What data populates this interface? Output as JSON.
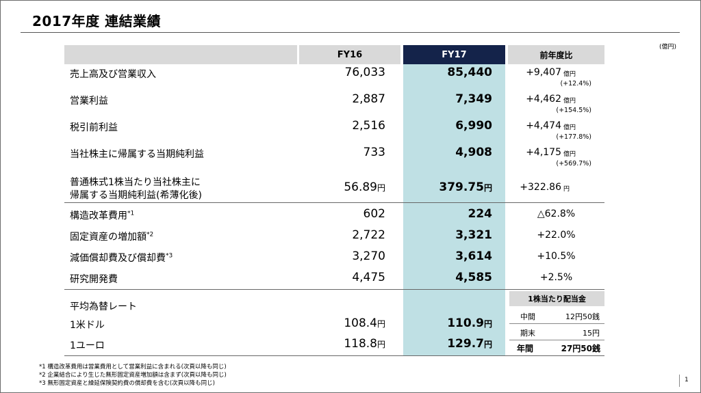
{
  "title": "2017年度 連結業績",
  "unit": "(億円)",
  "header": {
    "fy16": "FY16",
    "fy17": "FY17",
    "diff": "前年度比"
  },
  "rows": [
    {
      "label": "売上高及び営業収入",
      "fy16": "76,033",
      "fy17": "85,440",
      "diff": "+9,407",
      "diff_unit": "億円",
      "pct": "(+12.4%)"
    },
    {
      "label": "営業利益",
      "fy16": "2,887",
      "fy17": "7,349",
      "diff": "+4,462",
      "diff_unit": "億円",
      "pct": "(+154.5%)"
    },
    {
      "label": "税引前利益",
      "fy16": "2,516",
      "fy17": "6,990",
      "diff": "+4,474",
      "diff_unit": "億円",
      "pct": "(+177.8%)"
    },
    {
      "label": "当社株主に帰属する当期純利益",
      "fy16": "733",
      "fy17": "4,908",
      "diff": "+4,175",
      "diff_unit": "億円",
      "pct": "(+569.7%)"
    }
  ],
  "eps": {
    "label_1": "普通株式1株当たり当社株主に",
    "label_2": "帰属する当期純利益(希薄化後)",
    "fy16": "56.89",
    "fy17": "379.75",
    "unit": "円",
    "diff": "+322.86",
    "diff_unit": "円"
  },
  "items": [
    {
      "label": "構造改革費用",
      "sup": "*1",
      "fy16": "602",
      "fy17": "224",
      "diff": "△62.8%"
    },
    {
      "label": "固定資産の増加額",
      "sup": "*2",
      "fy16": "2,722",
      "fy17": "3,321",
      "diff": "+22.0%"
    },
    {
      "label": "減価償却費及び償却費",
      "sup": "*3",
      "fy16": "3,270",
      "fy17": "3,614",
      "diff": "+10.5%"
    },
    {
      "label": "研究開発費",
      "sup": "",
      "fy16": "4,475",
      "fy17": "4,585",
      "diff": "+2.5%"
    }
  ],
  "fx": {
    "heading": "平均為替レート",
    "usd": {
      "label": "1米ドル",
      "fy16": "108.4",
      "fy17": "110.9",
      "unit": "円"
    },
    "eur": {
      "label": "1ユーロ",
      "fy16": "118.8",
      "fy17": "129.7",
      "unit": "円"
    }
  },
  "dividend": {
    "heading": "1株当たり配当金",
    "interim_label": "中間",
    "interim_value": "12円50銭",
    "yearend_label": "期末",
    "yearend_value": "15円",
    "annual_label": "年間",
    "annual_value": "27円50銭"
  },
  "notes": [
    "*1 構造改革費用は営業費用として営業利益に含まれる(次頁以降も同じ)",
    "*2 企業結合により生じた無形固定資産増加額は含まず(次頁以降も同じ)",
    "*3 無形固定資産と繰延保険契約費の償却費を含む(次頁以降も同じ)"
  ],
  "page_number": "1"
}
